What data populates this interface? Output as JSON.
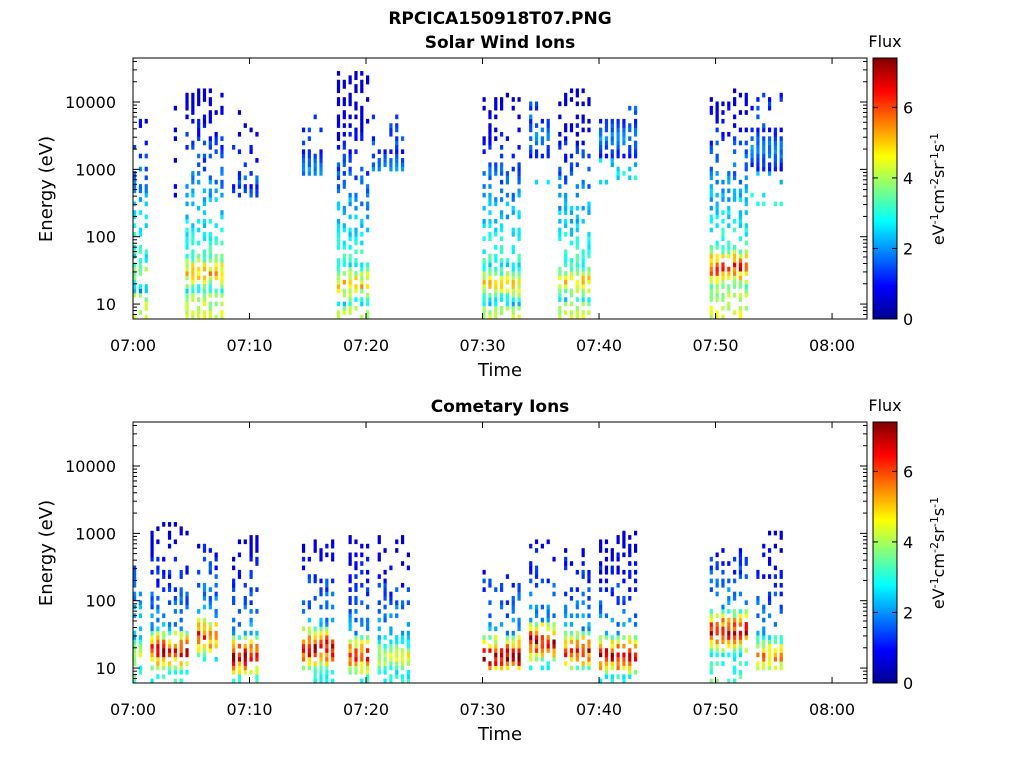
{
  "figure_title": "RPCICA150918T07.PNG",
  "chart_data": [
    {
      "type": "heatmap",
      "title": "Solar Wind Ions",
      "xlabel": "Time",
      "ylabel": "Energy (eV)",
      "x_ticks": [
        "07:00",
        "07:10",
        "07:20",
        "07:30",
        "07:40",
        "07:50",
        "08:00"
      ],
      "xlim": [
        "07:00",
        "08:03"
      ],
      "y_scale": "log",
      "y_ticks": [
        10,
        100,
        1000,
        10000
      ],
      "ylim": [
        6,
        45000
      ],
      "colorbar": {
        "label": "Flux",
        "unit_label": "eV-1cm-2sr-1s-1",
        "ticks": [
          0,
          2,
          4,
          6
        ],
        "range": [
          0,
          7.4
        ],
        "colormap": "jet"
      },
      "bursts": [
        {
          "start": "07:00:00",
          "end": "07:01:30",
          "hot_energy": 30,
          "hot_flux": 4.0,
          "low_energy": 6,
          "max_energy": 12000,
          "density": 0.45,
          "spine_flux": 3.5
        },
        {
          "start": "07:03:30",
          "end": "07:04:00",
          "hot_energy": 30,
          "hot_flux": 3.0,
          "low_energy": 300,
          "max_energy": 12000,
          "density": 0.25,
          "spine_flux": 2.5
        },
        {
          "start": "07:04:30",
          "end": "07:08:00",
          "hot_energy": 30,
          "hot_flux": 5.3,
          "low_energy": 6,
          "max_energy": 15000,
          "density": 0.6,
          "spine_flux": 3.5
        },
        {
          "start": "07:08:30",
          "end": "07:11:00",
          "hot_energy": 300,
          "hot_flux": 2.0,
          "low_energy": 400,
          "max_energy": 10000,
          "density": 0.2,
          "spine_flux": 2.0
        },
        {
          "start": "07:14:30",
          "end": "07:16:30",
          "hot_energy": 1000,
          "hot_flux": 2.0,
          "low_energy": 800,
          "max_energy": 10000,
          "density": 0.25,
          "spine_flux": 2.0
        },
        {
          "start": "07:17:30",
          "end": "07:20:30",
          "hot_energy": 20,
          "hot_flux": 5.2,
          "low_energy": 6,
          "max_energy": 30000,
          "density": 0.65,
          "spine_flux": 3.5
        },
        {
          "start": "07:20:30",
          "end": "07:23:30",
          "hot_energy": 1000,
          "hot_flux": 2.0,
          "low_energy": 1000,
          "max_energy": 8000,
          "density": 0.25,
          "spine_flux": 2.0
        },
        {
          "start": "07:30:00",
          "end": "07:33:30",
          "hot_energy": 20,
          "hot_flux": 4.8,
          "low_energy": 6,
          "max_energy": 14000,
          "density": 0.6,
          "spine_flux": 3.5
        },
        {
          "start": "07:34:00",
          "end": "07:36:00",
          "hot_energy": 3000,
          "hot_flux": 2.0,
          "low_energy": 600,
          "max_energy": 10000,
          "density": 0.25,
          "spine_flux": 2.0
        },
        {
          "start": "07:36:30",
          "end": "07:39:30",
          "hot_energy": 22,
          "hot_flux": 5.0,
          "low_energy": 6,
          "max_energy": 16000,
          "density": 0.6,
          "spine_flux": 3.5
        },
        {
          "start": "07:40:00",
          "end": "07:43:30",
          "hot_energy": 3000,
          "hot_flux": 2.0,
          "low_energy": 500,
          "max_energy": 10000,
          "density": 0.25,
          "spine_flux": 2.0
        },
        {
          "start": "07:49:30",
          "end": "07:53:00",
          "hot_energy": 35,
          "hot_flux": 6.3,
          "low_energy": 6,
          "max_energy": 17000,
          "density": 0.6,
          "spine_flux": 3.5
        },
        {
          "start": "07:53:00",
          "end": "07:56:00",
          "hot_energy": 2000,
          "hot_flux": 2.0,
          "low_energy": 300,
          "max_energy": 15000,
          "density": 0.25,
          "spine_flux": 2.0
        }
      ]
    },
    {
      "type": "heatmap",
      "title": "Cometary Ions",
      "xlabel": "Time",
      "ylabel": "Energy (eV)",
      "x_ticks": [
        "07:00",
        "07:10",
        "07:20",
        "07:30",
        "07:40",
        "07:50",
        "08:00"
      ],
      "xlim": [
        "07:00",
        "08:03"
      ],
      "y_scale": "log",
      "y_ticks": [
        10,
        100,
        1000,
        10000
      ],
      "ylim": [
        6,
        45000
      ],
      "colorbar": {
        "label": "Flux",
        "unit_label": "eV-1cm-2sr-1s-1",
        "ticks": [
          0,
          2,
          4,
          6
        ],
        "range": [
          0,
          7.4
        ],
        "colormap": "jet"
      },
      "bursts": [
        {
          "start": "07:00:00",
          "end": "07:01:00",
          "hot_energy": 15,
          "hot_flux": 4.5,
          "low_energy": 6,
          "max_energy": 350,
          "density": 0.6,
          "spine_flux": 3.0
        },
        {
          "start": "07:01:30",
          "end": "07:05:00",
          "hot_energy": 18,
          "hot_flux": 6.8,
          "low_energy": 6,
          "max_energy": 1500,
          "density": 0.45,
          "spine_flux": 2.5
        },
        {
          "start": "07:05:30",
          "end": "07:07:30",
          "hot_energy": 30,
          "hot_flux": 6.5,
          "low_energy": 12,
          "max_energy": 800,
          "density": 0.45,
          "spine_flux": 2.5
        },
        {
          "start": "07:08:30",
          "end": "07:11:00",
          "hot_energy": 15,
          "hot_flux": 7.0,
          "low_energy": 6,
          "max_energy": 1000,
          "density": 0.45,
          "spine_flux": 2.5
        },
        {
          "start": "07:14:30",
          "end": "07:17:30",
          "hot_energy": 20,
          "hot_flux": 7.2,
          "low_energy": 6,
          "max_energy": 800,
          "density": 0.45,
          "spine_flux": 2.5
        },
        {
          "start": "07:18:30",
          "end": "07:20:30",
          "hot_energy": 15,
          "hot_flux": 6.5,
          "low_energy": 6,
          "max_energy": 1000,
          "density": 0.45,
          "spine_flux": 2.5
        },
        {
          "start": "07:21:00",
          "end": "07:24:00",
          "hot_energy": 15,
          "hot_flux": 4.5,
          "low_energy": 6,
          "max_energy": 1000,
          "density": 0.4,
          "spine_flux": 2.5
        },
        {
          "start": "07:30:00",
          "end": "07:33:30",
          "hot_energy": 15,
          "hot_flux": 7.2,
          "low_energy": 10,
          "max_energy": 300,
          "density": 0.45,
          "spine_flux": 2.5
        },
        {
          "start": "07:34:00",
          "end": "07:36:30",
          "hot_energy": 25,
          "hot_flux": 7.0,
          "low_energy": 10,
          "max_energy": 1000,
          "density": 0.45,
          "spine_flux": 2.5
        },
        {
          "start": "07:37:00",
          "end": "07:39:30",
          "hot_energy": 18,
          "hot_flux": 6.5,
          "low_energy": 10,
          "max_energy": 600,
          "density": 0.45,
          "spine_flux": 2.5
        },
        {
          "start": "07:40:00",
          "end": "07:43:30",
          "hot_energy": 15,
          "hot_flux": 7.0,
          "low_energy": 6,
          "max_energy": 1300,
          "density": 0.45,
          "spine_flux": 2.5
        },
        {
          "start": "07:49:30",
          "end": "07:53:00",
          "hot_energy": 35,
          "hot_flux": 7.0,
          "low_energy": 6,
          "max_energy": 600,
          "density": 0.45,
          "spine_flux": 2.5
        },
        {
          "start": "07:53:30",
          "end": "07:56:00",
          "hot_energy": 15,
          "hot_flux": 5.5,
          "low_energy": 10,
          "max_energy": 1200,
          "density": 0.4,
          "spine_flux": 2.5
        }
      ]
    }
  ]
}
